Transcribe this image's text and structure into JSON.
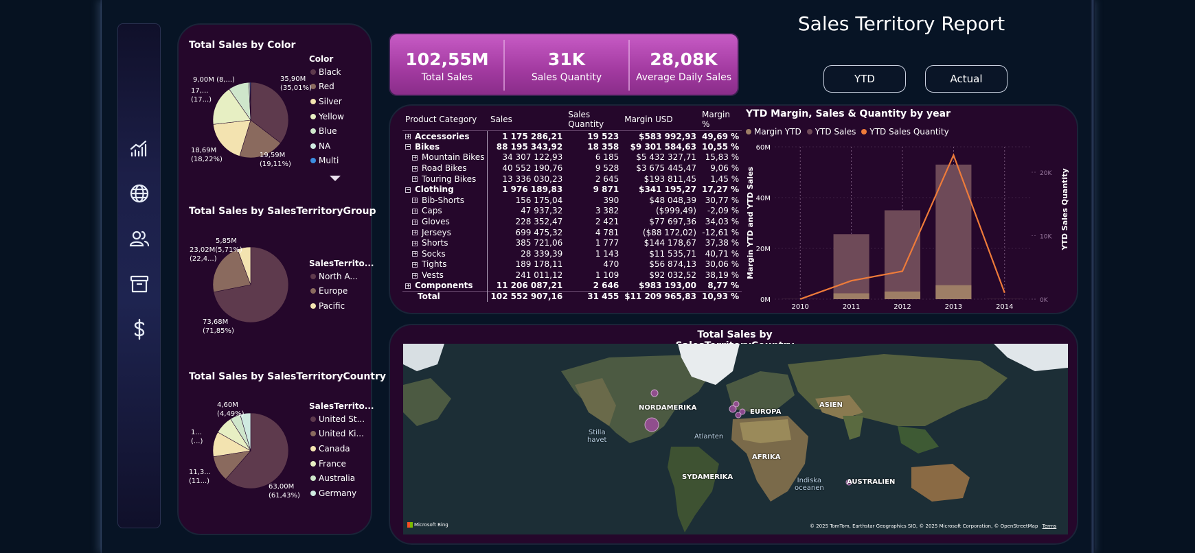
{
  "page_title": "Sales Territory Report",
  "buttons": {
    "ytd": "YTD",
    "actual": "Actual"
  },
  "nav": {
    "icons": [
      "chart-icon",
      "globe-icon",
      "users-icon",
      "archive-icon",
      "dollar-icon"
    ]
  },
  "kpis": [
    {
      "value": "102,55M",
      "label": "Total Sales"
    },
    {
      "value": "31K",
      "label": "Sales Quantity"
    },
    {
      "value": "28,08K",
      "label": "Average Daily Sales"
    }
  ],
  "color_pie": {
    "title": "Total Sales by Color",
    "legend_title": "Color",
    "legend": [
      {
        "label": "Black",
        "color": "#5e3a4d"
      },
      {
        "label": "Red",
        "color": "#8a6a5e"
      },
      {
        "label": "Silver",
        "color": "#f3e3b0"
      },
      {
        "label": "Yellow",
        "color": "#e7efc3"
      },
      {
        "label": "Blue",
        "color": "#cfe6cb"
      },
      {
        "label": "NA",
        "color": "#cfeae0"
      },
      {
        "label": "Multi",
        "color": "#3c8de0"
      }
    ],
    "labels": {
      "black": [
        "35,90M",
        "(35,01%)"
      ],
      "red": [
        "19,59M",
        "(19,11%)"
      ],
      "silver": [
        "18,69M",
        "(18,22%)"
      ],
      "yellow": [
        "17,...",
        "(17...)"
      ],
      "blue": "9,00M (8,...)"
    },
    "chart_data": {
      "type": "pie",
      "categories": [
        "Black",
        "Red",
        "Silver",
        "Yellow",
        "Blue",
        "NA",
        "Multi"
      ],
      "values": [
        35.9,
        19.59,
        18.69,
        17.4,
        9.0,
        0.5,
        0.3
      ]
    }
  },
  "group_pie": {
    "title": "Total Sales by SalesTerritoryGroup",
    "legend_title": "SalesTerrito...",
    "legend": [
      {
        "label": "North A...",
        "color": "#5e3a4d"
      },
      {
        "label": "Europe",
        "color": "#8a6a5e"
      },
      {
        "label": "Pacific",
        "color": "#f3e3b0"
      }
    ],
    "labels": {
      "north": [
        "73,68M",
        "(71,85%)"
      ],
      "europe": [
        "23,02M",
        "(22,4...)"
      ],
      "pacific": [
        "5,85M",
        "(5,71%)"
      ]
    },
    "chart_data": {
      "type": "pie",
      "categories": [
        "North America",
        "Europe",
        "Pacific"
      ],
      "values": [
        73.68,
        23.02,
        5.85
      ]
    }
  },
  "country_pie": {
    "title": "Total Sales by SalesTerritoryCountry",
    "legend_title": "SalesTerrito...",
    "legend": [
      {
        "label": "United St...",
        "color": "#5e3a4d"
      },
      {
        "label": "United Ki...",
        "color": "#8a6a5e"
      },
      {
        "label": "Canada",
        "color": "#f3e3b0"
      },
      {
        "label": "France",
        "color": "#e7efc3"
      },
      {
        "label": "Australia",
        "color": "#cfe6cb"
      },
      {
        "label": "Germany",
        "color": "#cfeae0"
      }
    ],
    "labels": {
      "us": [
        "63,00M",
        "(61,43%)"
      ],
      "uk": [
        "11,3...",
        "(11...)"
      ],
      "canada": [
        "1...",
        "(...)"
      ],
      "top": [
        "4,60M",
        "(4,49%)"
      ]
    },
    "chart_data": {
      "type": "pie",
      "categories": [
        "United States",
        "United Kingdom",
        "Canada",
        "France",
        "Australia",
        "Germany"
      ],
      "values": [
        63.0,
        11.3,
        11.0,
        8.0,
        4.6,
        4.6
      ]
    }
  },
  "matrix": {
    "headers": [
      "Product Category",
      "Sales",
      "Sales Quantity",
      "Margin USD",
      "Margin %"
    ],
    "rows": [
      {
        "name": "Accessories",
        "level": 0,
        "bold": true,
        "sign": "+",
        "sales": "1 175 286,21",
        "qty": "19 523",
        "margin": "$583 992,93",
        "pct": "49,69 %"
      },
      {
        "name": "Bikes",
        "level": 0,
        "bold": true,
        "sign": "−",
        "sales": "88 195 343,92",
        "qty": "18 358",
        "margin": "$9 301 584,63",
        "pct": "10,55 %"
      },
      {
        "name": "Mountain Bikes",
        "level": 1,
        "bold": false,
        "sign": "+",
        "sales": "34 307 122,93",
        "qty": "6 185",
        "margin": "$5 432 327,71",
        "pct": "15,83 %"
      },
      {
        "name": "Road Bikes",
        "level": 1,
        "bold": false,
        "sign": "+",
        "sales": "40 552 190,76",
        "qty": "9 528",
        "margin": "$3 675 445,47",
        "pct": "9,06 %"
      },
      {
        "name": "Touring Bikes",
        "level": 1,
        "bold": false,
        "sign": "+",
        "sales": "13 336 030,23",
        "qty": "2 645",
        "margin": "$193 811,45",
        "pct": "1,45 %"
      },
      {
        "name": "Clothing",
        "level": 0,
        "bold": true,
        "sign": "−",
        "sales": "1 976 189,83",
        "qty": "9 871",
        "margin": "$341 195,27",
        "pct": "17,27 %"
      },
      {
        "name": "Bib-Shorts",
        "level": 1,
        "bold": false,
        "sign": "+",
        "sales": "156 175,04",
        "qty": "390",
        "margin": "$48 048,39",
        "pct": "30,77 %"
      },
      {
        "name": "Caps",
        "level": 1,
        "bold": false,
        "sign": "+",
        "sales": "47 937,32",
        "qty": "3 382",
        "margin": "($999,49)",
        "pct": "-2,09 %"
      },
      {
        "name": "Gloves",
        "level": 1,
        "bold": false,
        "sign": "+",
        "sales": "228 352,47",
        "qty": "2 421",
        "margin": "$77 697,36",
        "pct": "34,03 %"
      },
      {
        "name": "Jerseys",
        "level": 1,
        "bold": false,
        "sign": "+",
        "sales": "699 475,32",
        "qty": "4 781",
        "margin": "($88 172,02)",
        "pct": "-12,61 %"
      },
      {
        "name": "Shorts",
        "level": 1,
        "bold": false,
        "sign": "+",
        "sales": "385 721,06",
        "qty": "1 777",
        "margin": "$144 178,67",
        "pct": "37,38 %"
      },
      {
        "name": "Socks",
        "level": 1,
        "bold": false,
        "sign": "+",
        "sales": "28 339,39",
        "qty": "1 143",
        "margin": "$11 535,71",
        "pct": "40,71 %"
      },
      {
        "name": "Tights",
        "level": 1,
        "bold": false,
        "sign": "+",
        "sales": "189 178,11",
        "qty": "470",
        "margin": "$56 874,13",
        "pct": "30,06 %"
      },
      {
        "name": "Vests",
        "level": 1,
        "bold": false,
        "sign": "+",
        "sales": "241 011,12",
        "qty": "1 109",
        "margin": "$92 032,52",
        "pct": "38,19 %"
      },
      {
        "name": "Components",
        "level": 0,
        "bold": true,
        "sign": "+",
        "sales": "11 206 087,21",
        "qty": "2 646",
        "margin": "$983 193,00",
        "pct": "8,77 %"
      },
      {
        "name": "Total",
        "level": 0,
        "bold": true,
        "sign": "",
        "sales": "102 552 907,16",
        "qty": "31 455",
        "margin": "$11 209 965,83",
        "pct": "10,93 %"
      }
    ]
  },
  "combo_chart": {
    "title": "YTD Margin, Sales & Quantity by year",
    "legend": [
      {
        "label": "Margin YTD",
        "color": "#9e7e66"
      },
      {
        "label": "YTD Sales",
        "color": "#6e4a58"
      },
      {
        "label": "YTD Sales Quantity",
        "color": "#ee7b3a"
      }
    ],
    "y_left_label": "Margin YTD and YTD Sales",
    "y_right_label": "YTD Sales Quantity",
    "y_left_ticks": [
      "0M",
      "20M",
      "40M",
      "60M"
    ],
    "y_right_ticks": [
      "0K",
      "10K",
      "20K"
    ],
    "chart_data": {
      "type": "bar",
      "categories": [
        "2010",
        "2011",
        "2012",
        "2013",
        "2014"
      ],
      "ylim": [
        0,
        60
      ],
      "y2lim": [
        0,
        24
      ],
      "series": [
        {
          "name": "YTD Sales",
          "values": [
            0.05,
            25.6,
            35.0,
            53.0,
            0.05
          ],
          "axis": "left"
        },
        {
          "name": "Margin YTD",
          "values": [
            0.01,
            2.3,
            3.0,
            5.5,
            0.01
          ],
          "axis": "left"
        },
        {
          "name": "YTD Sales Quantity",
          "values": [
            0.01,
            2.9,
            4.4,
            22.7,
            1.0
          ],
          "axis": "right",
          "type": "line"
        }
      ]
    }
  },
  "map": {
    "title": "Total Sales by SalesTerritoryCountry",
    "continents": [
      "NORDAMERIKA",
      "EUROPA",
      "ASIEN",
      "AFRIKA",
      "SYDAMERIKA",
      "AUSTRALIEN"
    ],
    "oceans": {
      "pacific": [
        "Stilla",
        "havet"
      ],
      "atlantic": "Atlanten",
      "indian": [
        "Indiska",
        "oceanen"
      ]
    },
    "attribution": "© 2025 TomTom, Earthstar Geographics SIO, © 2025 Microsoft Corporation, © OpenStreetMap",
    "terms": "Terms",
    "brand": "Microsoft Bing"
  }
}
